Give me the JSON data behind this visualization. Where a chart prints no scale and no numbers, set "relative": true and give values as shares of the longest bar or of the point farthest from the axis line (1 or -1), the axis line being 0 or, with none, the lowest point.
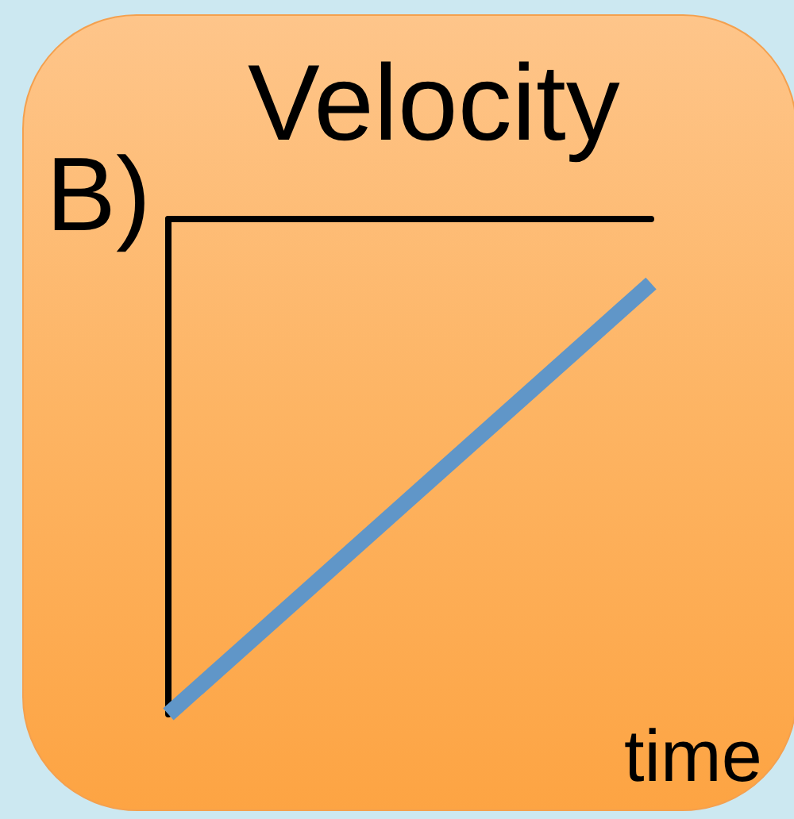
{
  "chart_data": {
    "type": "line",
    "title": "Velocity",
    "xlabel": "time",
    "annotations": [
      "B)"
    ],
    "categories": [
      null,
      null
    ],
    "relative": true,
    "series": [
      {
        "color": "#6096c8",
        "values": [
          -1,
          -0.13
        ]
      }
    ]
  }
}
